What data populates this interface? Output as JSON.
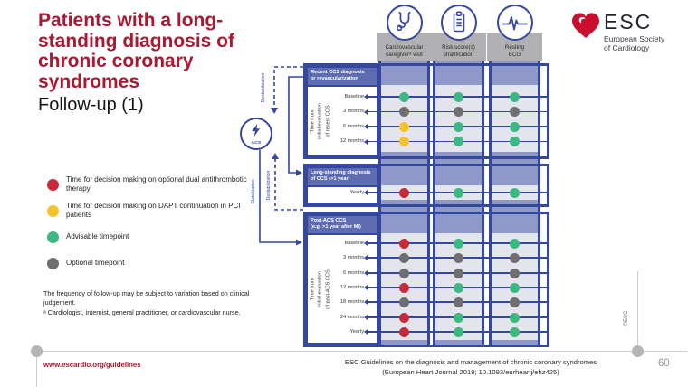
{
  "slide": {
    "title": "Patients with a long-standing diagnosis of chronic coronary syndromes",
    "subtitle": "Follow-up (1)",
    "page_number": "60",
    "footer_link": "www.escardio.org/guidelines",
    "citation_line1": "ESC Guidelines on the diagnosis and management of chronic coronary syndromes",
    "citation_line2": "(European Heart Journal 2019; 10.1093/eurheartj/ehz425)",
    "copyright": "©ESC"
  },
  "logo": {
    "heart_icon": "esc-heart-icon",
    "name": "ESC",
    "line1": "European Society",
    "line2": "of Cardiology"
  },
  "legend": {
    "items": [
      {
        "color": "red",
        "label": "Time for decision making on optional dual antithrombotic therapy"
      },
      {
        "color": "yellow",
        "label": "Time for decision making on DAPT continuation in PCI patients"
      },
      {
        "color": "green",
        "label": "Advisable timepoint"
      },
      {
        "color": "gray",
        "label": "Optional timepoint"
      }
    ]
  },
  "footnotes": [
    "The frequency of follow-up may be subject to variation based on clinical judgement.",
    "ᵃ Cardiologist, internist, general practitioner, or cardiovascular nurse."
  ],
  "columns": [
    {
      "icon": "stethoscope-icon",
      "label": "Cardiovascular\ncaregiverᵃ visit"
    },
    {
      "icon": "clipboard-icon",
      "label": "Risk score(s)\nstratification"
    },
    {
      "icon": "ecg-icon",
      "label": "Resting\nECG"
    }
  ],
  "flow": {
    "acs_label": "ACS",
    "destabilization_top": "Destabilization",
    "stabilization": "Stabilization",
    "destabilization_bottom": "Destabilization"
  },
  "sections": [
    {
      "header": "Recent CCS diagnosis\nor revascularization",
      "side_label": [
        "Time from",
        "initial evaluation",
        "of recent CCS"
      ],
      "rows": [
        {
          "label": "Baseline",
          "dots": [
            "green",
            "green",
            "green"
          ]
        },
        {
          "label": "3 months",
          "dots": [
            "gray",
            "gray",
            "gray"
          ]
        },
        {
          "label": "6 months",
          "dots": [
            "yellow",
            "green",
            "green"
          ]
        },
        {
          "label": "12 months",
          "dots": [
            "yellow",
            "green",
            "green"
          ]
        }
      ]
    },
    {
      "header": "Long-standing diagnosis\nof CCS (>1 year)",
      "side_label": [],
      "rows": [
        {
          "label": "Yearly",
          "dots": [
            "red",
            "green",
            "green"
          ]
        }
      ]
    },
    {
      "header": "Post-ACS CCS\n(e.g. >1 year after MI)",
      "side_label": [
        "Time from",
        "initial evaluation",
        "of post-ACS CCS"
      ],
      "rows": [
        {
          "label": "Baseline",
          "dots": [
            "red",
            "green",
            "green"
          ]
        },
        {
          "label": "3 months",
          "dots": [
            "gray",
            "gray",
            "gray"
          ]
        },
        {
          "label": "6 months",
          "dots": [
            "gray",
            "gray",
            "gray"
          ]
        },
        {
          "label": "12 months",
          "dots": [
            "red",
            "green",
            "green"
          ]
        },
        {
          "label": "18 months",
          "dots": [
            "gray",
            "gray",
            "gray"
          ]
        },
        {
          "label": "24 months",
          "dots": [
            "red",
            "green",
            "green"
          ]
        },
        {
          "label": "Yearly",
          "dots": [
            "red",
            "green",
            "green"
          ]
        }
      ]
    }
  ],
  "colors": {
    "red": "#c52b3b",
    "yellow": "#f5c32c",
    "green": "#3eb882",
    "gray": "#6f6f6f",
    "navy": "#35479e",
    "band": "#5e6cb2",
    "strip": "#8e98c9",
    "row_bg": "#e4e5ec",
    "header_box": "#b1b1b3",
    "title_red": "#ab1832",
    "brand_red": "#c8102e"
  }
}
